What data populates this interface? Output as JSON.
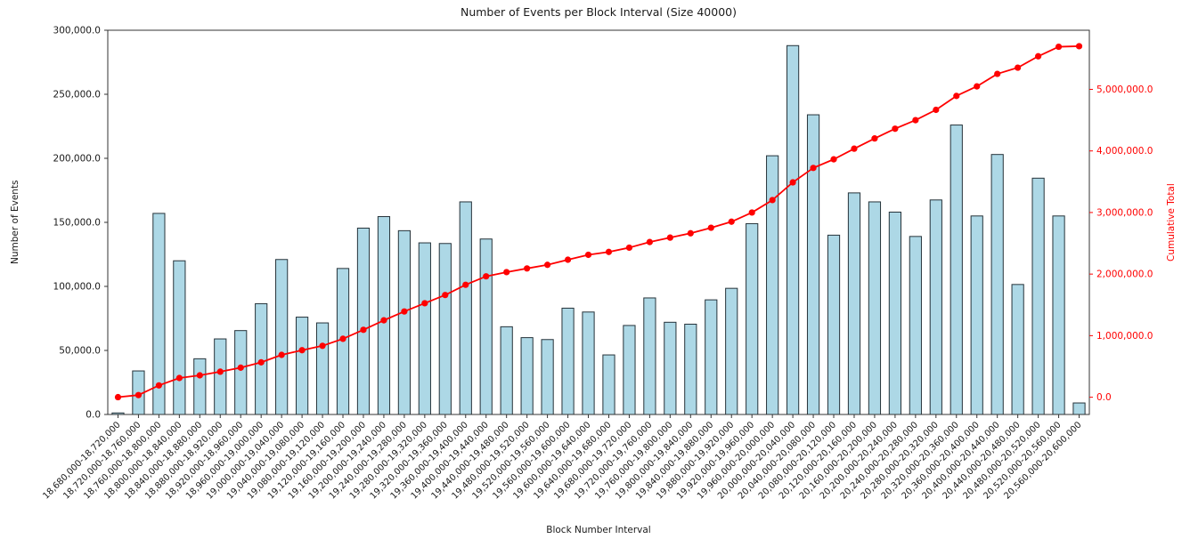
{
  "chart_data": {
    "type": "bar",
    "title": "Number of Events per Block Interval (Size 40000)",
    "xlabel": "Block Number Interval",
    "ylabel": "Number of Events",
    "ylabel_right": "Cumulative Total",
    "grid": false,
    "legend_position": "none",
    "colors": {
      "bar_fill": "#add8e6",
      "bar_edge": "#26333a",
      "line": "#ff0000",
      "axis_text": "#1a1a1a",
      "right_axis_text": "#ff0000",
      "spine": "#333333"
    },
    "categories": [
      "18,680,000-18,720,000",
      "18,720,000-18,760,000",
      "18,760,000-18,800,000",
      "18,800,000-18,840,000",
      "18,840,000-18,880,000",
      "18,880,000-18,920,000",
      "18,920,000-18,960,000",
      "18,960,000-19,000,000",
      "19,000,000-19,040,000",
      "19,040,000-19,080,000",
      "19,080,000-19,120,000",
      "19,120,000-19,160,000",
      "19,160,000-19,200,000",
      "19,200,000-19,240,000",
      "19,240,000-19,280,000",
      "19,280,000-19,320,000",
      "19,320,000-19,360,000",
      "19,360,000-19,400,000",
      "19,400,000-19,440,000",
      "19,440,000-19,480,000",
      "19,480,000-19,520,000",
      "19,520,000-19,560,000",
      "19,560,000-19,600,000",
      "19,600,000-19,640,000",
      "19,640,000-19,680,000",
      "19,680,000-19,720,000",
      "19,720,000-19,760,000",
      "19,760,000-19,800,000",
      "19,800,000-19,840,000",
      "19,840,000-19,880,000",
      "19,880,000-19,920,000",
      "19,920,000-19,960,000",
      "19,960,000-20,000,000",
      "20,000,000-20,040,000",
      "20,040,000-20,080,000",
      "20,080,000-20,120,000",
      "20,120,000-20,160,000",
      "20,160,000-20,200,000",
      "20,200,000-20,240,000",
      "20,240,000-20,280,000",
      "20,280,000-20,320,000",
      "20,320,000-20,360,000",
      "20,360,000-20,400,000",
      "20,400,000-20,440,000",
      "20,440,000-20,480,000",
      "20,480,000-20,520,000",
      "20,520,000-20,560,000",
      "20,560,000-20,600,000"
    ],
    "series": [
      {
        "name": "Number of Events",
        "type": "bar",
        "axis": "left",
        "values": [
          1200,
          34000,
          157000,
          120000,
          43500,
          59000,
          65500,
          86500,
          121000,
          76000,
          71500,
          114000,
          145500,
          154500,
          143500,
          134000,
          133500,
          166000,
          137000,
          68500,
          60000,
          58500,
          83000,
          80000,
          46500,
          69500,
          91000,
          72000,
          70500,
          89500,
          98500,
          149000,
          202000,
          288000,
          234000,
          140000,
          173000,
          166000,
          158000,
          139000,
          167500,
          226000,
          155000,
          203000,
          101500,
          184500,
          155000,
          9000
        ]
      },
      {
        "name": "Cumulative Total",
        "type": "line",
        "axis": "right",
        "marker": "circle",
        "values": [
          1200,
          35200,
          192200,
          312200,
          355700,
          414700,
          480200,
          566700,
          687700,
          763700,
          835200,
          949200,
          1094700,
          1249200,
          1392700,
          1526700,
          1660200,
          1826200,
          1963200,
          2031700,
          2091700,
          2150200,
          2233200,
          2313200,
          2359700,
          2429200,
          2520200,
          2592200,
          2662700,
          2752200,
          2850700,
          2999700,
          3201700,
          3489700,
          3723700,
          3863700,
          4036700,
          4202700,
          4360700,
          4499700,
          4667200,
          4893200,
          5048200,
          5251200,
          5352700,
          5537200,
          5692200,
          5701200
        ]
      }
    ],
    "left_axis": {
      "range": [
        0,
        300000
      ],
      "ticks": [
        0,
        50000,
        100000,
        150000,
        200000,
        250000,
        300000
      ],
      "tick_labels": [
        "0.0",
        "50,000.0",
        "100,000.0",
        "150,000.0",
        "200,000.0",
        "250,000.0",
        "300,000.0"
      ]
    },
    "right_axis": {
      "range": [
        -280000,
        5960000
      ],
      "ticks": [
        0,
        1000000,
        2000000,
        3000000,
        4000000,
        5000000
      ],
      "tick_labels": [
        "0.0",
        "1,000,000.0",
        "2,000,000.0",
        "3,000,000.0",
        "4,000,000.0",
        "5,000,000.0"
      ]
    }
  }
}
